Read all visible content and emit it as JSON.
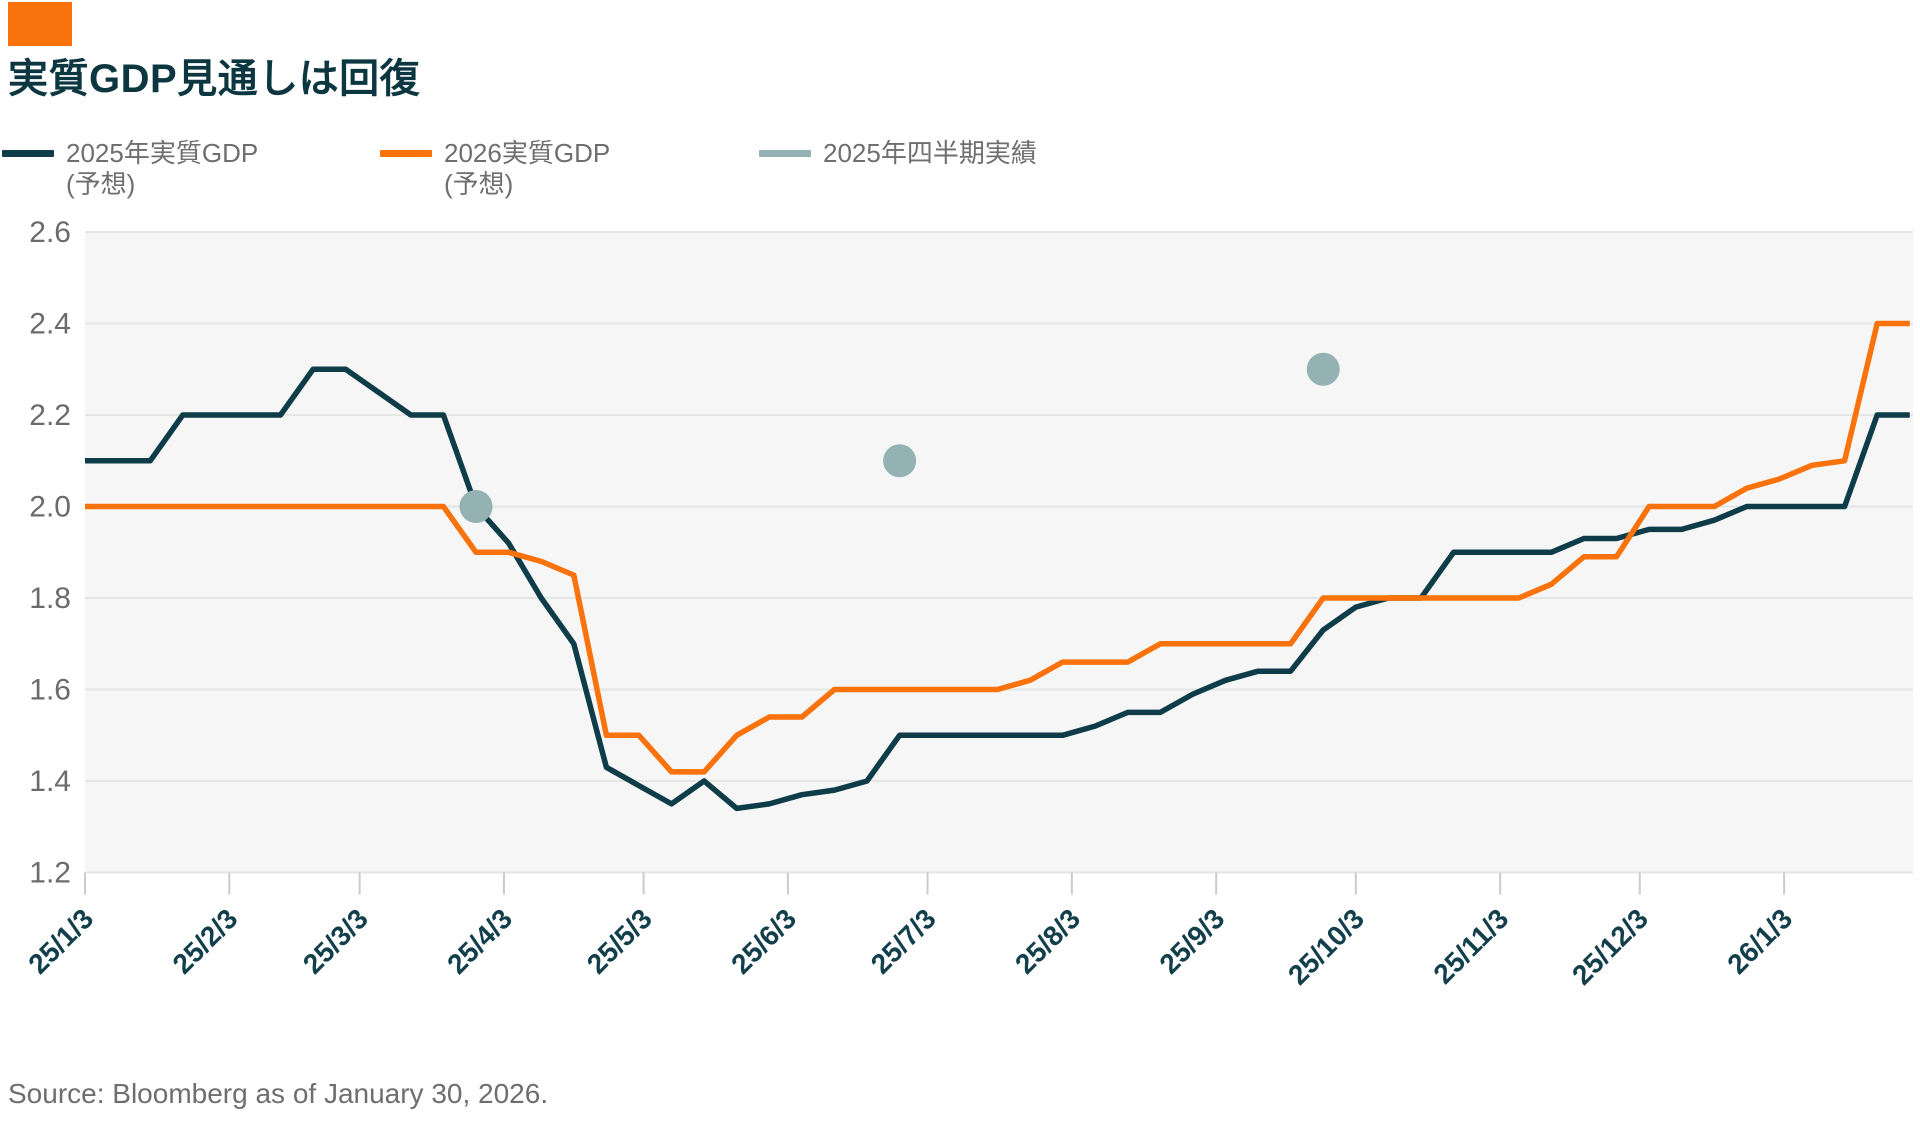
{
  "accent_color": "#f9720b",
  "header": {
    "title": "実質GDP見通しは回復"
  },
  "legend": [
    {
      "label": "2025年実質GDP",
      "label2": "(予想)",
      "color": "#0e3c48"
    },
    {
      "label": "2026実質GDP",
      "label2": "(予想)",
      "color": "#f9720b"
    },
    {
      "label": "2025年四半期実績",
      "label2": "",
      "color": "#94b2b4"
    }
  ],
  "source": {
    "text": "Source: Bloomberg as of January 30, 2026."
  },
  "colors": {
    "plot_background": "#f5f6f5",
    "gridline": "#e3e6e3",
    "tick": "#c9cdc9",
    "y_label": "#6b6b6b",
    "x_label": "#123f4b",
    "series_2025": "#0e3c48",
    "series_2026": "#f9720b",
    "actual_dot": "#94b2b4"
  },
  "chart_data": {
    "type": "line",
    "title": "実質GDP見通しは回復",
    "xlabel": "",
    "ylabel": "",
    "grid": true,
    "legend_position": "top",
    "y_axis": {
      "min": 1.2,
      "max": 2.6,
      "step": 0.2,
      "tick_labels": [
        "2.6",
        "2.4",
        "2.2",
        "2.0",
        "1.8",
        "1.6",
        "1.4",
        "1.2"
      ]
    },
    "x_axis": {
      "tick_labels": [
        "25/1/3",
        "25/2/3",
        "25/3/3",
        "25/4/3",
        "25/5/3",
        "25/6/3",
        "25/7/3",
        "25/8/3",
        "25/9/3",
        "25/10/3",
        "25/11/3",
        "25/12/3",
        "26/1/3"
      ],
      "tick_dates": [
        "2025-01-03",
        "2025-02-03",
        "2025-03-03",
        "2025-04-03",
        "2025-05-03",
        "2025-06-03",
        "2025-07-03",
        "2025-08-03",
        "2025-09-03",
        "2025-10-03",
        "2025-11-03",
        "2025-12-03",
        "2026-01-03"
      ],
      "range_start": "2025-01-03",
      "range_end": "2026-01-30"
    },
    "dates": [
      "2025-01-03",
      "2025-01-10",
      "2025-01-17",
      "2025-01-24",
      "2025-01-31",
      "2025-02-07",
      "2025-02-14",
      "2025-02-21",
      "2025-02-28",
      "2025-03-07",
      "2025-03-14",
      "2025-03-21",
      "2025-03-28",
      "2025-04-04",
      "2025-04-11",
      "2025-04-18",
      "2025-04-25",
      "2025-05-02",
      "2025-05-09",
      "2025-05-16",
      "2025-05-23",
      "2025-05-30",
      "2025-06-06",
      "2025-06-13",
      "2025-06-20",
      "2025-06-27",
      "2025-07-04",
      "2025-07-11",
      "2025-07-18",
      "2025-07-25",
      "2025-08-01",
      "2025-08-08",
      "2025-08-15",
      "2025-08-22",
      "2025-08-29",
      "2025-09-05",
      "2025-09-12",
      "2025-09-19",
      "2025-09-26",
      "2025-10-03",
      "2025-10-10",
      "2025-10-17",
      "2025-10-24",
      "2025-10-31",
      "2025-11-07",
      "2025-11-14",
      "2025-11-21",
      "2025-11-28",
      "2025-12-05",
      "2025-12-12",
      "2025-12-19",
      "2025-12-26",
      "2026-01-02",
      "2026-01-09",
      "2026-01-16",
      "2026-01-23",
      "2026-01-30"
    ],
    "series": [
      {
        "name": "2025年実質GDP (予想)",
        "color": "#0e3c48",
        "values": [
          2.1,
          2.1,
          2.1,
          2.2,
          2.2,
          2.2,
          2.2,
          2.3,
          2.3,
          2.25,
          2.2,
          2.2,
          2.0,
          1.92,
          1.8,
          1.7,
          1.43,
          1.39,
          1.35,
          1.4,
          1.34,
          1.35,
          1.37,
          1.38,
          1.4,
          1.5,
          1.5,
          1.5,
          1.5,
          1.5,
          1.5,
          1.52,
          1.55,
          1.55,
          1.59,
          1.62,
          1.64,
          1.64,
          1.73,
          1.78,
          1.8,
          1.8,
          1.9,
          1.9,
          1.9,
          1.9,
          1.93,
          1.93,
          1.95,
          1.95,
          1.97,
          2.0,
          2.0,
          2.0,
          2.0,
          2.2,
          2.2
        ]
      },
      {
        "name": "2026実質GDP (予想)",
        "color": "#f9720b",
        "values": [
          2.0,
          2.0,
          2.0,
          2.0,
          2.0,
          2.0,
          2.0,
          2.0,
          2.0,
          2.0,
          2.0,
          2.0,
          1.9,
          1.9,
          1.88,
          1.85,
          1.5,
          1.5,
          1.42,
          1.42,
          1.5,
          1.54,
          1.54,
          1.6,
          1.6,
          1.6,
          1.6,
          1.6,
          1.6,
          1.62,
          1.66,
          1.66,
          1.66,
          1.7,
          1.7,
          1.7,
          1.7,
          1.7,
          1.8,
          1.8,
          1.8,
          1.8,
          1.8,
          1.8,
          1.8,
          1.83,
          1.89,
          1.89,
          2.0,
          2.0,
          2.0,
          2.04,
          2.06,
          2.09,
          2.1,
          2.4,
          2.4
        ]
      }
    ],
    "actuals": {
      "name": "2025年四半期実績",
      "color": "#94b2b4",
      "points": [
        {
          "date": "2025-03-28",
          "value": 2.0
        },
        {
          "date": "2025-06-27",
          "value": 2.1
        },
        {
          "date": "2025-09-26",
          "value": 2.3
        }
      ]
    }
  }
}
